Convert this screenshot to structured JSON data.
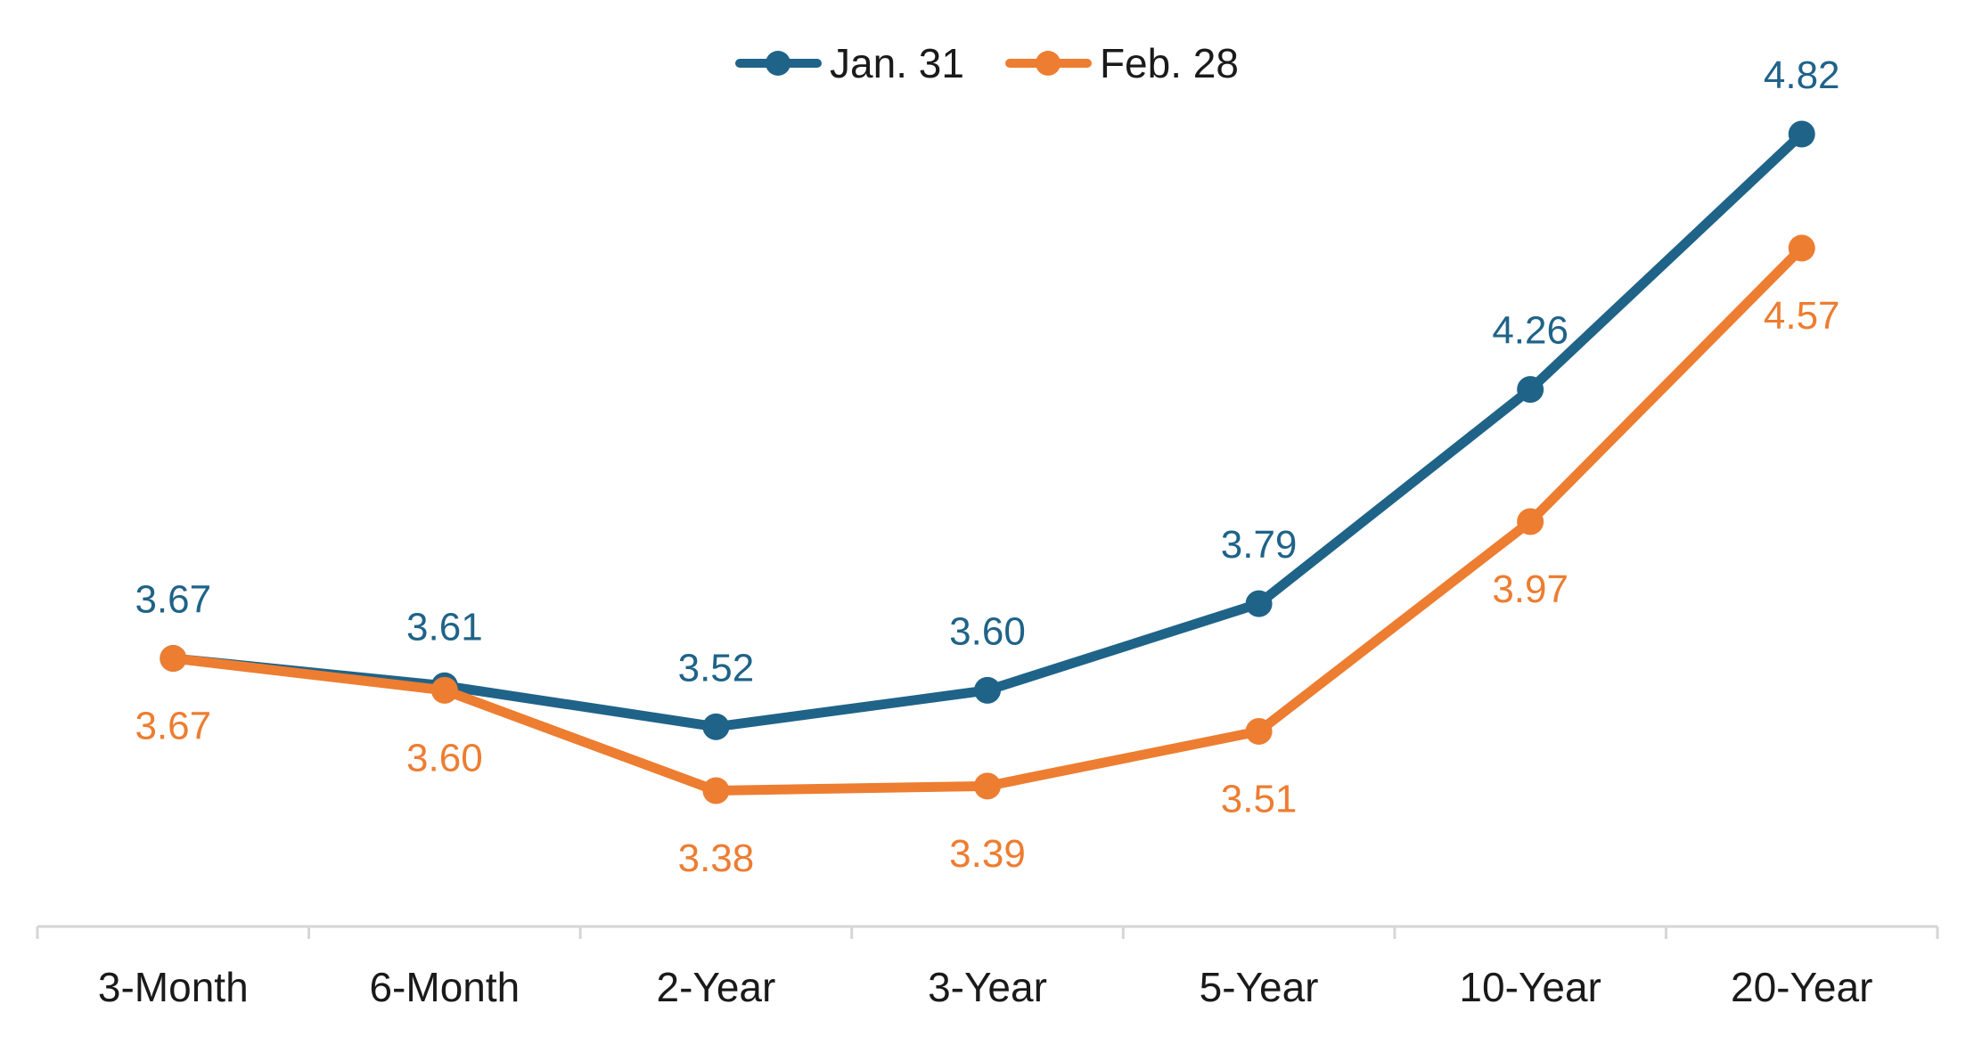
{
  "chart_data": {
    "type": "line",
    "title": "",
    "xlabel": "",
    "ylabel": "",
    "categories": [
      "3-Month",
      "6-Month",
      "2-Year",
      "3-Year",
      "5-Year",
      "10-Year",
      "20-Year"
    ],
    "series": [
      {
        "name": "Jan. 31",
        "color": "#1F6388",
        "values": [
          3.67,
          3.61,
          3.52,
          3.6,
          3.79,
          4.26,
          4.82
        ],
        "label_position": "above"
      },
      {
        "name": "Feb. 28",
        "color": "#ED7D31",
        "values": [
          3.67,
          3.6,
          3.38,
          3.39,
          3.51,
          3.97,
          4.57
        ],
        "label_position": "below"
      }
    ],
    "ylim": [
      3.25,
      4.95
    ],
    "grid": false,
    "y_axis_visible": false,
    "data_labels": true,
    "label_format": "0.00",
    "legend_position": "top-center",
    "axis_color": "#D6D6D6",
    "text_color": "#1A1A1A"
  }
}
